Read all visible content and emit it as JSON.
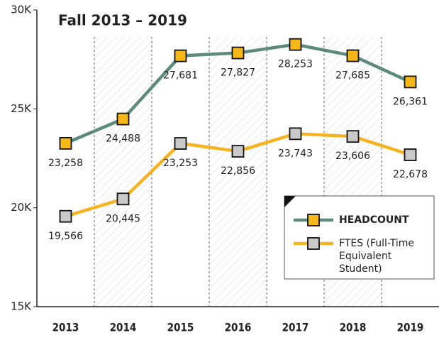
{
  "chart_data": {
    "type": "line",
    "title": "Fall 2013 – 2019",
    "categories": [
      "2013",
      "2014",
      "2015",
      "2016",
      "2017",
      "2018",
      "2019"
    ],
    "series": [
      {
        "name": "HEADCOUNT",
        "color": "#5c8b7c",
        "marker_color": "#f6b818",
        "values": [
          23258,
          24488,
          27681,
          27827,
          28253,
          27685,
          26361
        ],
        "value_labels": [
          "23,258",
          "24,488",
          "27,681",
          "27,827",
          "28,253",
          "27,685",
          "26,361"
        ]
      },
      {
        "name": "FTES (Full-Time Equivalent Student)",
        "color": "#f5b321",
        "marker_color": "#c9c9c9",
        "values": [
          19566,
          20445,
          23253,
          22856,
          23743,
          23606,
          22678
        ],
        "value_labels": [
          "19,566",
          "20,445",
          "23,253",
          "22,856",
          "23,743",
          "23,606",
          "22,678"
        ]
      }
    ],
    "ylim": [
      15000,
      30000
    ],
    "yticks": [
      {
        "value": 15000,
        "label": "15K"
      },
      {
        "value": 20000,
        "label": "20K"
      },
      {
        "value": 25000,
        "label": "25K"
      },
      {
        "value": 30000,
        "label": "30K"
      }
    ],
    "grid": false
  }
}
